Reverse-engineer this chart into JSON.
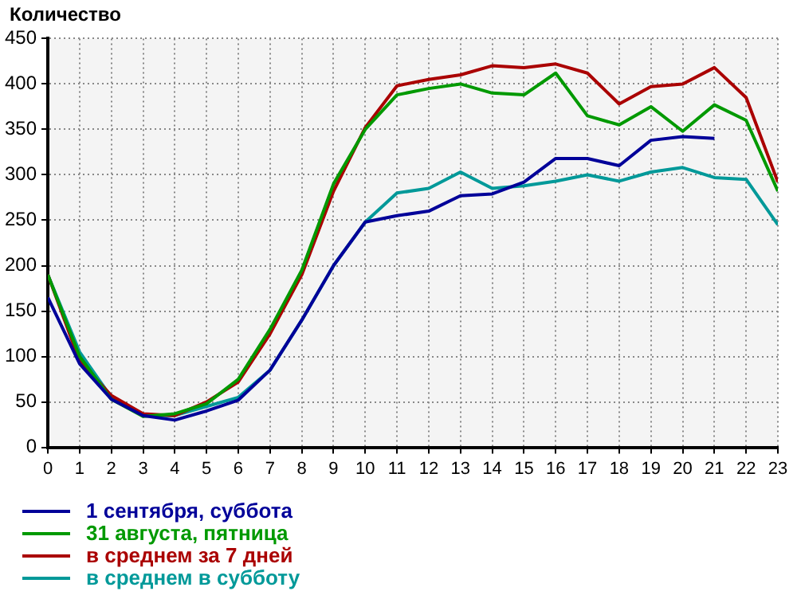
{
  "chart_data": {
    "type": "line",
    "ylabel": "Количество",
    "x": [
      0,
      1,
      2,
      3,
      4,
      5,
      6,
      7,
      8,
      9,
      10,
      11,
      12,
      13,
      14,
      15,
      16,
      17,
      18,
      19,
      20,
      21,
      22,
      23
    ],
    "xlim": [
      0,
      23
    ],
    "xticks": [
      0,
      1,
      2,
      3,
      4,
      5,
      6,
      7,
      8,
      9,
      10,
      11,
      12,
      13,
      14,
      15,
      16,
      17,
      18,
      19,
      20,
      21,
      22,
      23
    ],
    "ylim": [
      0,
      450
    ],
    "yticks": [
      0,
      50,
      100,
      150,
      200,
      250,
      300,
      350,
      400,
      450
    ],
    "grid": true,
    "legend": "bottom",
    "marker": "none",
    "line_style": "solid",
    "series": [
      {
        "name": "1 сентября, суббота",
        "color": "#000099",
        "values": [
          165,
          92,
          53,
          35,
          30,
          40,
          52,
          85,
          140,
          200,
          248,
          255,
          260,
          277,
          279,
          292,
          318,
          318,
          310,
          338,
          342,
          340,
          null,
          null
        ]
      },
      {
        "name": "31 августа, пятница",
        "color": "#009900",
        "values": [
          190,
          100,
          53,
          34,
          37,
          48,
          75,
          130,
          195,
          290,
          350,
          388,
          395,
          400,
          390,
          388,
          412,
          365,
          355,
          375,
          348,
          377,
          360,
          282
        ]
      },
      {
        "name": "в среднем за 7 дней",
        "color": "#aa0000",
        "values": [
          190,
          95,
          57,
          37,
          35,
          50,
          72,
          125,
          190,
          282,
          352,
          398,
          405,
          410,
          420,
          418,
          422,
          412,
          378,
          397,
          400,
          418,
          385,
          292
        ]
      },
      {
        "name": "в среднем в субботу",
        "color": "#009999",
        "values": [
          190,
          105,
          55,
          35,
          35,
          45,
          55,
          85,
          140,
          200,
          248,
          280,
          285,
          303,
          285,
          288,
          293,
          300,
          293,
          303,
          308,
          297,
          295,
          245
        ]
      }
    ]
  }
}
